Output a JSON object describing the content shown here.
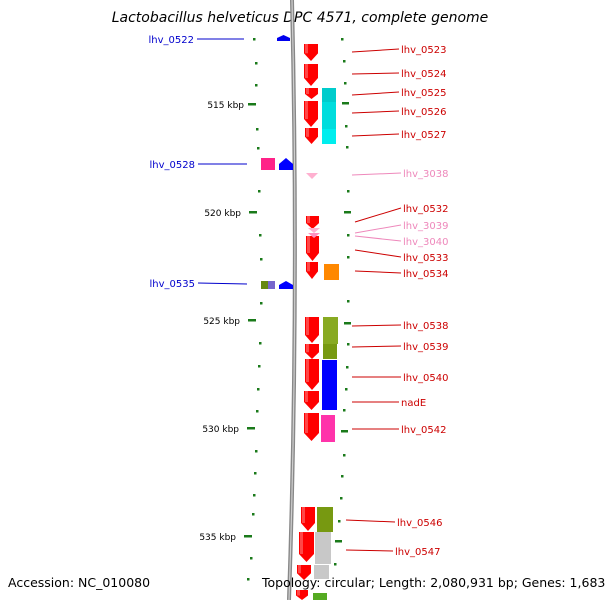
{
  "title": "Lactobacillus helveticus DPC 4571, complete genome",
  "footer": {
    "accession": "Accession: NC_010080",
    "summary": "Topology: circular; Length: 2,080,931 bp; Genes: 1,683"
  },
  "colors": {
    "backbone": "#888888",
    "tick": "#1a7a1a",
    "gene_forward": "#ff0000",
    "label_forward": "#cc0000",
    "label_reverse": "#0000cc",
    "label_rna": "#ee88bb"
  },
  "scale_labels": [
    "515 kbp",
    "520 kbp",
    "525 kbp",
    "530 kbp",
    "535 kbp"
  ],
  "gene_labels_right": [
    "lhv_0523",
    "lhv_0524",
    "lhv_0525",
    "lhv_0526",
    "lhv_0527",
    "lhv_3038",
    "lhv_0532",
    "lhv_3039",
    "lhv_3040",
    "lhv_0533",
    "lhv_0534",
    "lhv_0538",
    "lhv_0539",
    "lhv_0540",
    "nadE",
    "lhv_0542",
    "lhv_0546",
    "lhv_0547"
  ],
  "gene_labels_left": [
    "lhv_0522",
    "lhv_0528",
    "lhv_0535"
  ]
}
